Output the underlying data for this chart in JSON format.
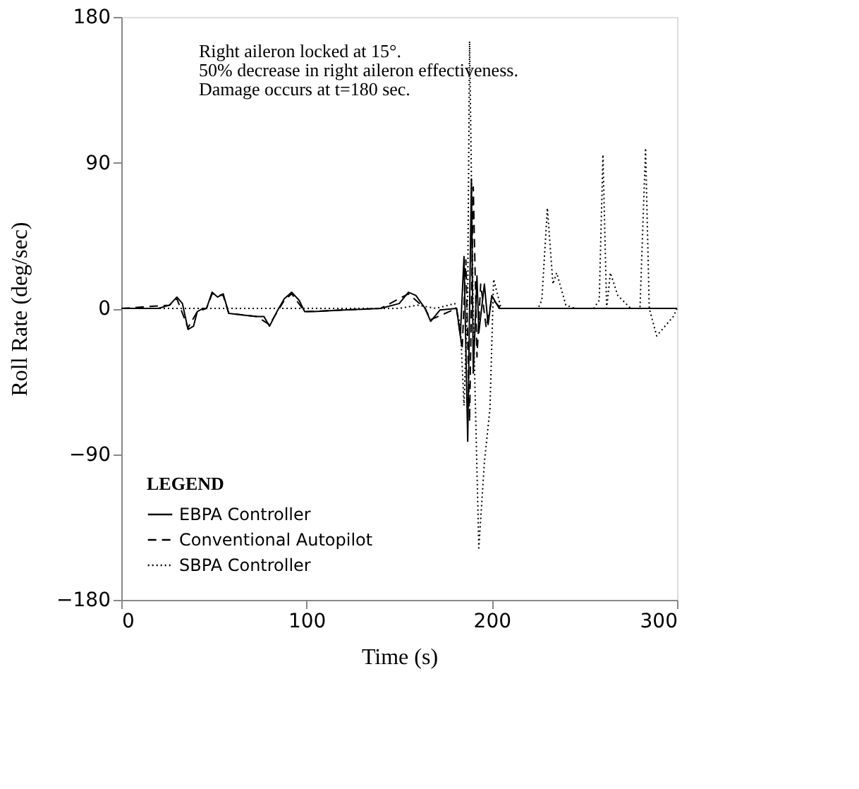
{
  "chart_data": {
    "type": "line",
    "xlabel": "Time (s)",
    "ylabel": "Roll Rate (deg/sec)",
    "legend_title": "LEGEND",
    "legend": "bottom left",
    "grid": false,
    "xlim": [
      0,
      300
    ],
    "ylim": [
      -180,
      180
    ],
    "xticks": [
      0,
      100,
      200,
      300
    ],
    "yticks": [
      -180,
      -90,
      0,
      90,
      180
    ],
    "annotations": [
      "Right aileron locked at 15°.",
      "50% decrease in right aileron effectiveness.",
      "Damage occurs at t=180 sec."
    ],
    "series": [
      {
        "name": "EBPA Controller",
        "color": "#000000",
        "line_style": "solid",
        "x": [
          0,
          20,
          26,
          30,
          33,
          36,
          39,
          41,
          44,
          46,
          49,
          52,
          55,
          58,
          65,
          73,
          77,
          80,
          84,
          88,
          92,
          96,
          99,
          104,
          120,
          140,
          150,
          155,
          159,
          164,
          167,
          172,
          181,
          183,
          185,
          187,
          189,
          190,
          192,
          193,
          196,
          198,
          200,
          204,
          220,
          260,
          300
        ],
        "values": [
          0,
          0,
          2,
          7,
          3,
          -13,
          -11,
          -2,
          0,
          0,
          10,
          7,
          9,
          -3,
          -4,
          -5,
          -5,
          -11,
          -2,
          6,
          10,
          5,
          -2,
          -2,
          -1,
          0,
          3,
          10,
          8,
          0,
          -8,
          -1,
          0,
          -17,
          32,
          -82,
          80,
          -40,
          20,
          -15,
          15,
          -10,
          8,
          0,
          0,
          0,
          0
        ]
      },
      {
        "name": "Conventional Autopilot",
        "color": "#000000",
        "line_style": "dashed",
        "x": [
          0,
          26,
          30,
          36,
          41,
          46,
          49,
          55,
          58,
          73,
          80,
          88,
          92,
          99,
          140,
          155,
          164,
          167,
          181,
          184,
          186,
          188,
          190,
          192,
          194,
          197,
          200,
          205,
          300
        ],
        "values": [
          0,
          2,
          6,
          -12,
          -2,
          0,
          9,
          8,
          -3,
          -5,
          -10,
          5,
          9,
          -2,
          0,
          9,
          0,
          -7,
          0,
          -25,
          30,
          -70,
          75,
          -30,
          15,
          -12,
          6,
          0,
          0
        ]
      },
      {
        "name": "SBPA Controller",
        "color": "#000000",
        "line_style": "dotted",
        "x": [
          0,
          150,
          160,
          170,
          180,
          183,
          185,
          187,
          188,
          190,
          193,
          196,
          199,
          201,
          205,
          225,
          227,
          230,
          233,
          235,
          240,
          245,
          255,
          258,
          260,
          262,
          264,
          268,
          275,
          280,
          283,
          285,
          289,
          298,
          300
        ],
        "values": [
          0,
          0,
          2,
          0,
          3,
          -10,
          -60,
          10,
          165,
          -5,
          -148,
          -95,
          -62,
          18,
          0,
          0,
          5,
          62,
          15,
          22,
          2,
          0,
          0,
          5,
          95,
          0,
          22,
          8,
          0,
          0,
          99,
          0,
          -17,
          -5,
          0
        ]
      }
    ]
  }
}
